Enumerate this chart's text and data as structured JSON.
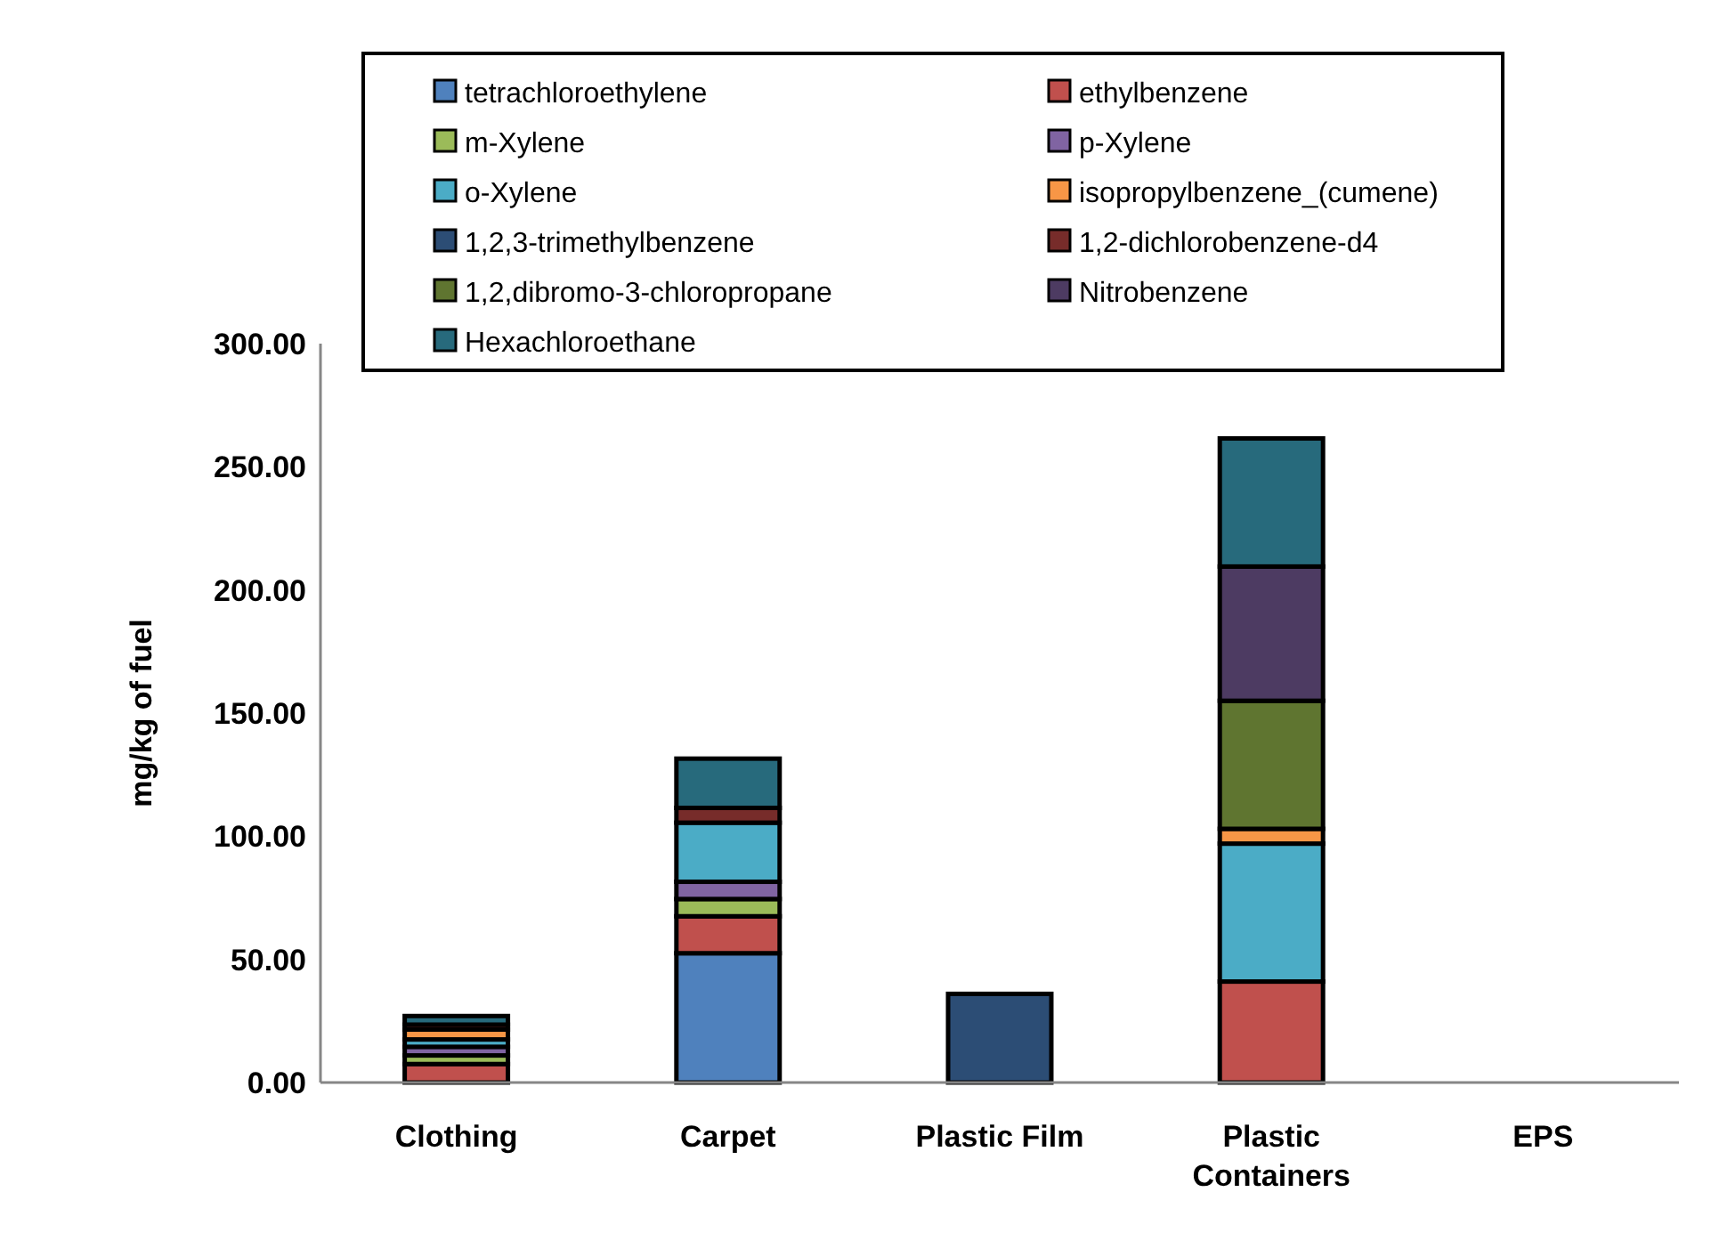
{
  "chart_data": {
    "type": "bar",
    "stacked": true,
    "ylabel": "mg/kg of fuel",
    "categories": [
      "Clothing",
      "Carpet",
      "Plastic Film",
      "Plastic\nContainers",
      "EPS"
    ],
    "ylim": [
      0,
      300
    ],
    "yticks": [
      {
        "value": 0,
        "label": "0.00"
      },
      {
        "value": 50,
        "label": "50.00"
      },
      {
        "value": 100,
        "label": "100.00"
      },
      {
        "value": 150,
        "label": "150.00"
      },
      {
        "value": 200,
        "label": "200.00"
      },
      {
        "value": 250,
        "label": "250.00"
      },
      {
        "value": 300,
        "label": "300.00"
      }
    ],
    "legend": "top",
    "grid": false,
    "series": [
      {
        "name": "tetrachloroethylene",
        "color": "#4f81bd",
        "values": [
          0,
          52.5,
          0,
          0,
          0
        ]
      },
      {
        "name": "ethylbenzene",
        "color": "#c0504d",
        "values": [
          7.5,
          15,
          0,
          41,
          0
        ]
      },
      {
        "name": "m-Xylene",
        "color": "#9bbb59",
        "values": [
          3.5,
          7,
          0,
          0,
          0
        ]
      },
      {
        "name": "p-Xylene",
        "color": "#8064a2",
        "values": [
          3.5,
          7,
          0,
          0,
          0
        ]
      },
      {
        "name": "o-Xylene",
        "color": "#4bacc6",
        "values": [
          3,
          24,
          0,
          56,
          0
        ]
      },
      {
        "name": "isopropylbenzene_(cumene)",
        "color": "#f79646",
        "values": [
          4,
          0,
          0,
          6,
          0
        ]
      },
      {
        "name": "1,2,3-trimethylbenzene",
        "color": "#2c4d75",
        "values": [
          0,
          0,
          36,
          0,
          0
        ]
      },
      {
        "name": "1,2-dichlorobenzene-d4",
        "color": "#772c2a",
        "values": [
          2,
          6,
          0,
          0,
          0
        ]
      },
      {
        "name": "1,2,dibromo-3-chloropropane",
        "color": "#5f7530",
        "values": [
          0,
          0,
          0,
          52,
          0
        ]
      },
      {
        "name": "Nitrobenzene",
        "color": "#4d3b62",
        "values": [
          0,
          0,
          0,
          54.5,
          0
        ]
      },
      {
        "name": "Hexachloroethane",
        "color": "#276a7c",
        "values": [
          3.5,
          20,
          0,
          52,
          0
        ]
      }
    ]
  }
}
